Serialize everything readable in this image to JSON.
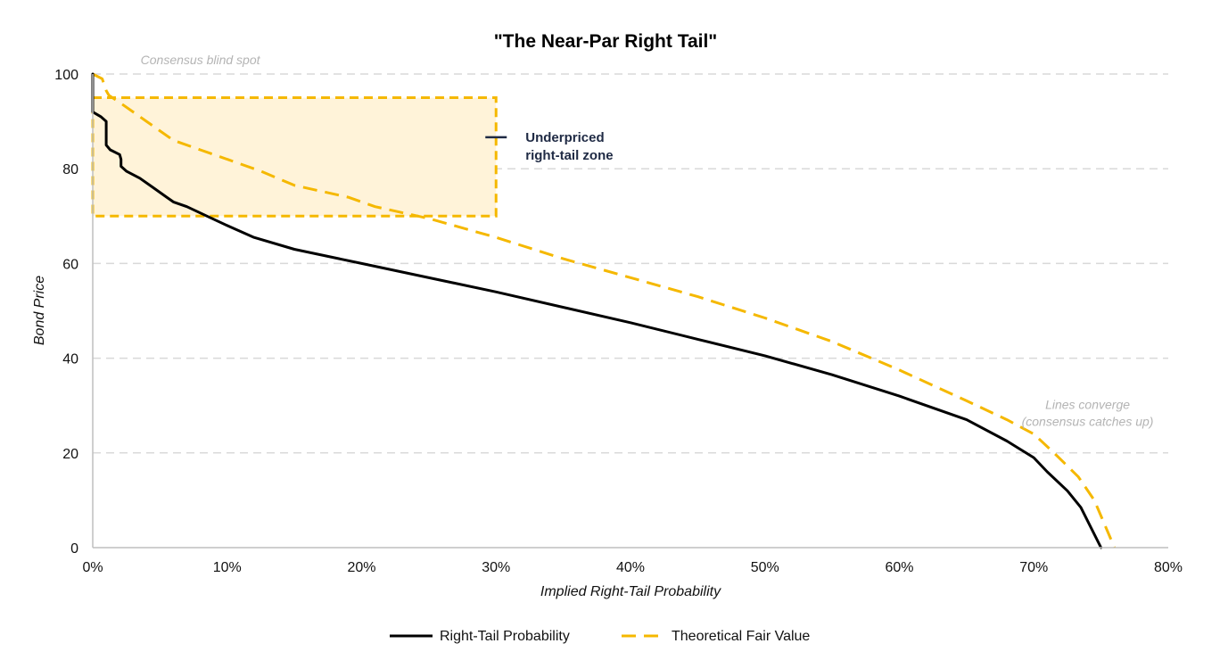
{
  "chart_data": {
    "type": "line",
    "title": "\"The Near-Par Right Tail\"",
    "xlabel": "Implied Right-Tail Probability",
    "ylabel": "Bond Price",
    "xlim": [
      0,
      0.8
    ],
    "ylim": [
      0,
      100
    ],
    "x_ticks": [
      0,
      0.1,
      0.2,
      0.3,
      0.4,
      0.5,
      0.6,
      0.7,
      0.8
    ],
    "x_tick_labels": [
      "0%",
      "10%",
      "20%",
      "30%",
      "40%",
      "50%",
      "60%",
      "70%",
      "80%"
    ],
    "y_ticks": [
      0,
      20,
      40,
      60,
      80,
      100
    ],
    "y_tick_labels": [
      "0",
      "20",
      "40",
      "60",
      "80",
      "100"
    ],
    "grid": "horizontal-dashed",
    "series": [
      {
        "name": "Right-Tail Probability",
        "color": "#000000",
        "style": "solid",
        "points": [
          [
            0.0,
            100
          ],
          [
            0.0,
            92
          ],
          [
            0.006,
            91
          ],
          [
            0.01,
            90
          ],
          [
            0.01,
            87
          ],
          [
            0.01,
            85
          ],
          [
            0.013,
            84
          ],
          [
            0.02,
            83
          ],
          [
            0.021,
            82
          ],
          [
            0.021,
            80.5
          ],
          [
            0.025,
            79.5
          ],
          [
            0.035,
            78
          ],
          [
            0.045,
            76
          ],
          [
            0.055,
            74
          ],
          [
            0.06,
            73
          ],
          [
            0.07,
            72
          ],
          [
            0.085,
            70
          ],
          [
            0.1,
            68
          ],
          [
            0.12,
            65.5
          ],
          [
            0.15,
            63
          ],
          [
            0.2,
            60
          ],
          [
            0.3,
            54
          ],
          [
            0.4,
            47.5
          ],
          [
            0.45,
            44
          ],
          [
            0.5,
            40.5
          ],
          [
            0.55,
            36.5
          ],
          [
            0.6,
            32
          ],
          [
            0.65,
            27
          ],
          [
            0.68,
            22.5
          ],
          [
            0.7,
            19
          ],
          [
            0.71,
            16
          ],
          [
            0.725,
            12
          ],
          [
            0.735,
            8.5
          ],
          [
            0.75,
            0
          ]
        ]
      },
      {
        "name": "Theoretical Fair Value",
        "color": "#F5B800",
        "style": "dashed",
        "points": [
          [
            0.0,
            100
          ],
          [
            0.007,
            99
          ],
          [
            0.01,
            96.5
          ],
          [
            0.012,
            95.5
          ],
          [
            0.02,
            94
          ],
          [
            0.04,
            90
          ],
          [
            0.06,
            86
          ],
          [
            0.08,
            84
          ],
          [
            0.1,
            82
          ],
          [
            0.125,
            79.5
          ],
          [
            0.15,
            76.5
          ],
          [
            0.19,
            74
          ],
          [
            0.21,
            72
          ],
          [
            0.25,
            69.5
          ],
          [
            0.3,
            65.5
          ],
          [
            0.35,
            61
          ],
          [
            0.4,
            57
          ],
          [
            0.45,
            53
          ],
          [
            0.5,
            48.5
          ],
          [
            0.55,
            43.5
          ],
          [
            0.6,
            37.5
          ],
          [
            0.65,
            31
          ],
          [
            0.68,
            27
          ],
          [
            0.7,
            24
          ],
          [
            0.715,
            20
          ],
          [
            0.733,
            15
          ],
          [
            0.745,
            10
          ],
          [
            0.76,
            0
          ]
        ]
      }
    ],
    "highlight_zone": {
      "label_line1": "Underpriced",
      "label_line2": "right-tail zone",
      "x_range": [
        0,
        0.3
      ],
      "y_range": [
        70,
        95
      ],
      "fill": "#FFF3D9",
      "border": "#F5B800",
      "label_color": "#1F2A44"
    },
    "annotations": [
      {
        "id": "blind-spot",
        "text": "Consensus blind spot",
        "x": 0.08,
        "y": 103
      },
      {
        "id": "converge",
        "line1": "Lines converge",
        "line2": "(consensus catches up)",
        "x": 0.74,
        "y": 30
      }
    ],
    "legend": {
      "position": "bottom-center",
      "items": [
        "Right-Tail Probability",
        "Theoretical Fair Value"
      ]
    }
  }
}
